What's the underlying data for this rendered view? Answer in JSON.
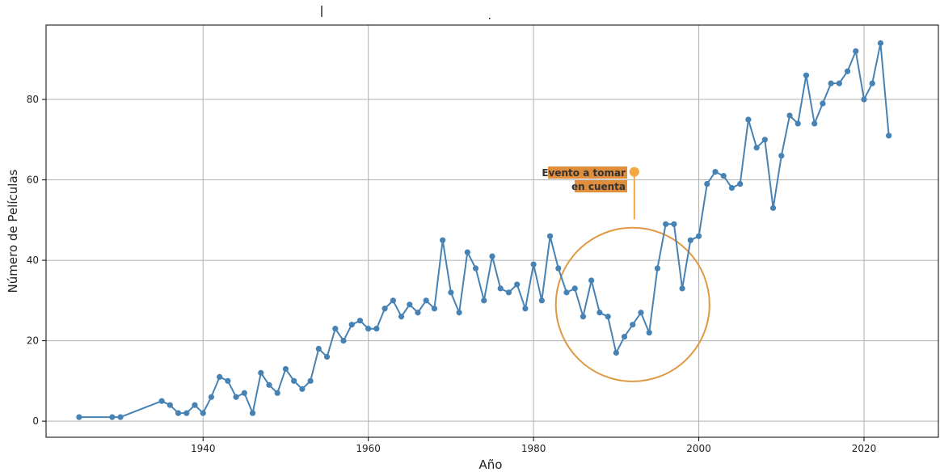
{
  "chart_data": {
    "type": "line",
    "xlabel": "Año",
    "ylabel": "Número de Películas",
    "xlim": [
      1921,
      2029
    ],
    "ylim": [
      -4,
      98.5
    ],
    "xticks": [
      1940,
      1960,
      1980,
      2000,
      2020
    ],
    "yticks": [
      0,
      20,
      40,
      60,
      80
    ],
    "grid": true,
    "line_color": "#4682b4",
    "series": [
      {
        "x": [
          1925,
          1929,
          1930,
          1935,
          1936,
          1937,
          1938,
          1939,
          1940,
          1941,
          1942,
          1943,
          1944,
          1945,
          1946,
          1947,
          1948,
          1949,
          1950,
          1951,
          1952,
          1953,
          1954,
          1955,
          1956,
          1957,
          1958,
          1959,
          1960,
          1961,
          1962,
          1963,
          1964,
          1965,
          1966,
          1967,
          1968,
          1969,
          1970,
          1971,
          1972,
          1973,
          1974,
          1975,
          1976,
          1977,
          1978,
          1979,
          1980,
          1981,
          1982,
          1983,
          1984,
          1985,
          1986,
          1987,
          1988,
          1989,
          1990,
          1991,
          1992,
          1993,
          1994,
          1995,
          1996,
          1997,
          1998,
          1999,
          2000,
          2001,
          2002,
          2003,
          2004,
          2005,
          2006,
          2007,
          2008,
          2009,
          2010,
          2011,
          2012,
          2013,
          2014,
          2015,
          2016,
          2017,
          2018,
          2019,
          2020,
          2021,
          2022,
          2023
        ],
        "y": [
          1,
          1,
          1,
          5,
          4,
          2,
          2,
          4,
          2,
          6,
          11,
          10,
          6,
          7,
          2,
          12,
          9,
          7,
          13,
          10,
          8,
          10,
          18,
          16,
          23,
          20,
          24,
          25,
          23,
          23,
          28,
          30,
          26,
          29,
          27,
          30,
          28,
          45,
          32,
          27,
          42,
          38,
          30,
          41,
          33,
          32,
          34,
          28,
          39,
          30,
          46,
          38,
          32,
          33,
          26,
          35,
          27,
          26,
          17,
          21,
          24,
          27,
          22,
          38,
          49,
          49,
          33,
          45,
          46,
          59,
          62,
          61,
          58,
          59,
          75,
          68,
          70,
          53,
          66,
          76,
          74,
          86,
          74,
          79,
          84,
          84,
          87,
          92,
          80,
          84,
          94,
          71
        ]
      }
    ],
    "annotation": {
      "text_line1": "Evento a tomar",
      "text_line2": "en cuenta",
      "point": [
        1992.2,
        62
      ],
      "stem_end_y": 50.2,
      "circle_center": [
        1992,
        29
      ],
      "circle_radius_years": 9.3,
      "color": "#f5a742",
      "circle_color": "#df9843",
      "box_color": "#e08d3c"
    }
  }
}
